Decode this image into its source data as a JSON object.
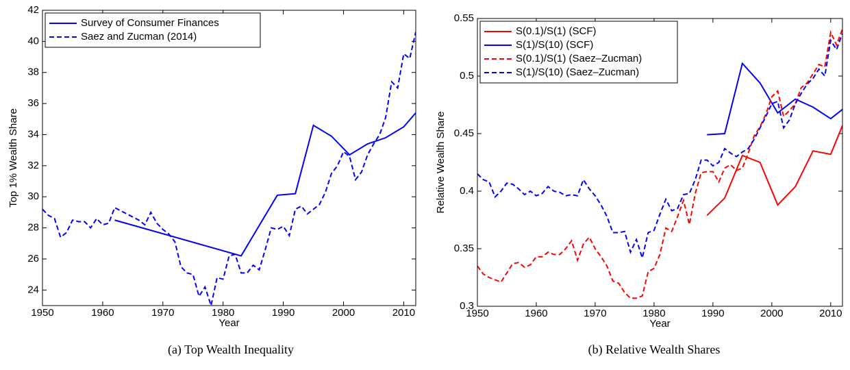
{
  "chart_data": [
    {
      "type": "line",
      "caption": "(a) Top Wealth Inequality",
      "xlabel": "Year",
      "ylabel": "Top 1% Wealth Share",
      "xlim": [
        1950,
        2012
      ],
      "xticks": [
        1950,
        1960,
        1970,
        1980,
        1990,
        2000,
        2010
      ],
      "ylim": [
        23,
        42
      ],
      "yticks": [
        24,
        26,
        28,
        30,
        32,
        34,
        36,
        38,
        40,
        42
      ],
      "legend": "upper left",
      "series": [
        {
          "name": "Survey of Consumer Finances",
          "color": "#0000ff",
          "linestyle": "solid",
          "x": [
            1962,
            1983,
            1989,
            1992,
            1995,
            1998,
            2001,
            2004,
            2007,
            2010,
            2012
          ],
          "values": [
            28.5,
            26.2,
            30.1,
            30.2,
            34.6,
            33.9,
            32.7,
            33.4,
            33.8,
            34.5,
            35.4
          ]
        },
        {
          "name": "Saez and Zucman (2014)",
          "color": "#0000ff",
          "linestyle": "dashed",
          "x": [
            1950,
            1951,
            1952,
            1953,
            1954,
            1955,
            1956,
            1957,
            1958,
            1959,
            1960,
            1961,
            1962,
            1963,
            1964,
            1965,
            1966,
            1967,
            1968,
            1969,
            1970,
            1971,
            1972,
            1973,
            1974,
            1975,
            1976,
            1977,
            1978,
            1979,
            1980,
            1981,
            1982,
            1983,
            1984,
            1985,
            1986,
            1987,
            1988,
            1989,
            1990,
            1991,
            1992,
            1993,
            1994,
            1995,
            1996,
            1997,
            1998,
            1999,
            2000,
            2001,
            2002,
            2003,
            2004,
            2005,
            2006,
            2007,
            2008,
            2009,
            2010,
            2011,
            2012
          ],
          "values": [
            29.2,
            28.8,
            28.6,
            27.4,
            27.7,
            28.5,
            28.4,
            28.4,
            28.0,
            28.6,
            28.2,
            28.3,
            29.3,
            29.1,
            28.9,
            28.7,
            28.5,
            28.2,
            29.0,
            28.3,
            27.9,
            27.6,
            27.1,
            25.5,
            25.1,
            25.0,
            23.6,
            24.2,
            23.0,
            24.8,
            24.7,
            26.2,
            26.3,
            25.1,
            25.1,
            25.6,
            25.3,
            26.6,
            28.0,
            27.9,
            28.1,
            27.5,
            29.2,
            29.4,
            28.9,
            29.2,
            29.5,
            30.3,
            31.5,
            32.0,
            32.9,
            32.6,
            31.1,
            31.6,
            32.7,
            33.4,
            34.0,
            35.1,
            37.4,
            37.0,
            39.2,
            38.9,
            40.6
          ]
        }
      ]
    },
    {
      "type": "line",
      "caption": "(b) Relative Wealth Shares",
      "xlabel": "Year",
      "ylabel": "Relative Wealth Share",
      "xlim": [
        1950,
        2012
      ],
      "xticks": [
        1950,
        1960,
        1970,
        1980,
        1990,
        2000,
        2010
      ],
      "ylim": [
        0.3,
        0.55
      ],
      "yticks": [
        0.3,
        0.35,
        0.4,
        0.45,
        0.5,
        0.55
      ],
      "legend": "upper left",
      "series": [
        {
          "name": "S(0.1)/S(1) (SCF)",
          "color": "#ff0000",
          "linestyle": "solid",
          "x": [
            1989,
            1992,
            1995,
            1998,
            2001,
            2004,
            2007,
            2010,
            2012
          ],
          "values": [
            0.379,
            0.394,
            0.431,
            0.425,
            0.388,
            0.404,
            0.435,
            0.432,
            0.457
          ]
        },
        {
          "name": "S(1)/S(10) (SCF)",
          "color": "#0000ff",
          "linestyle": "solid",
          "x": [
            1989,
            1992,
            1995,
            1998,
            2001,
            2004,
            2007,
            2010,
            2012
          ],
          "values": [
            0.449,
            0.45,
            0.511,
            0.494,
            0.468,
            0.48,
            0.473,
            0.463,
            0.471
          ]
        },
        {
          "name": "S(0.1)/S(1) (Saez–Zucman)",
          "color": "#ff0000",
          "linestyle": "dashed",
          "x": [
            1950,
            1951,
            1952,
            1953,
            1954,
            1955,
            1956,
            1957,
            1958,
            1959,
            1960,
            1961,
            1962,
            1963,
            1964,
            1965,
            1966,
            1967,
            1968,
            1969,
            1970,
            1971,
            1972,
            1973,
            1974,
            1975,
            1976,
            1977,
            1978,
            1979,
            1980,
            1981,
            1982,
            1983,
            1984,
            1985,
            1986,
            1987,
            1988,
            1989,
            1990,
            1991,
            1992,
            1993,
            1994,
            1995,
            1996,
            1997,
            1998,
            1999,
            2000,
            2001,
            2002,
            2003,
            2004,
            2005,
            2006,
            2007,
            2008,
            2009,
            2010,
            2011,
            2012
          ],
          "values": [
            0.335,
            0.328,
            0.325,
            0.323,
            0.321,
            0.329,
            0.337,
            0.338,
            0.334,
            0.336,
            0.343,
            0.343,
            0.347,
            0.345,
            0.345,
            0.35,
            0.357,
            0.34,
            0.354,
            0.36,
            0.35,
            0.343,
            0.335,
            0.322,
            0.32,
            0.312,
            0.307,
            0.307,
            0.309,
            0.33,
            0.333,
            0.345,
            0.368,
            0.365,
            0.378,
            0.392,
            0.371,
            0.398,
            0.416,
            0.417,
            0.417,
            0.408,
            0.42,
            0.423,
            0.418,
            0.42,
            0.433,
            0.448,
            0.456,
            0.467,
            0.482,
            0.487,
            0.465,
            0.47,
            0.476,
            0.49,
            0.494,
            0.502,
            0.51,
            0.508,
            0.538,
            0.527,
            0.541
          ]
        },
        {
          "name": "S(1)/S(10) (Saez–Zucman)",
          "color": "#0000ff",
          "linestyle": "dashed",
          "x": [
            1950,
            1951,
            1952,
            1953,
            1954,
            1955,
            1956,
            1957,
            1958,
            1959,
            1960,
            1961,
            1962,
            1963,
            1964,
            1965,
            1966,
            1967,
            1968,
            1969,
            1970,
            1971,
            1972,
            1973,
            1974,
            1975,
            1976,
            1977,
            1978,
            1979,
            1980,
            1981,
            1982,
            1983,
            1984,
            1985,
            1986,
            1987,
            1988,
            1989,
            1990,
            1991,
            1992,
            1993,
            1994,
            1995,
            1996,
            1997,
            1998,
            1999,
            2000,
            2001,
            2002,
            2003,
            2004,
            2005,
            2006,
            2007,
            2008,
            2009,
            2010,
            2011,
            2012
          ],
          "values": [
            0.415,
            0.41,
            0.408,
            0.395,
            0.4,
            0.407,
            0.406,
            0.402,
            0.397,
            0.4,
            0.396,
            0.398,
            0.404,
            0.4,
            0.399,
            0.396,
            0.397,
            0.396,
            0.41,
            0.402,
            0.396,
            0.388,
            0.378,
            0.364,
            0.364,
            0.365,
            0.347,
            0.358,
            0.342,
            0.364,
            0.366,
            0.38,
            0.393,
            0.383,
            0.385,
            0.397,
            0.398,
            0.41,
            0.427,
            0.427,
            0.422,
            0.425,
            0.437,
            0.433,
            0.43,
            0.434,
            0.437,
            0.445,
            0.455,
            0.465,
            0.476,
            0.478,
            0.455,
            0.462,
            0.476,
            0.485,
            0.493,
            0.498,
            0.506,
            0.5,
            0.531,
            0.523,
            0.537
          ]
        }
      ]
    }
  ]
}
